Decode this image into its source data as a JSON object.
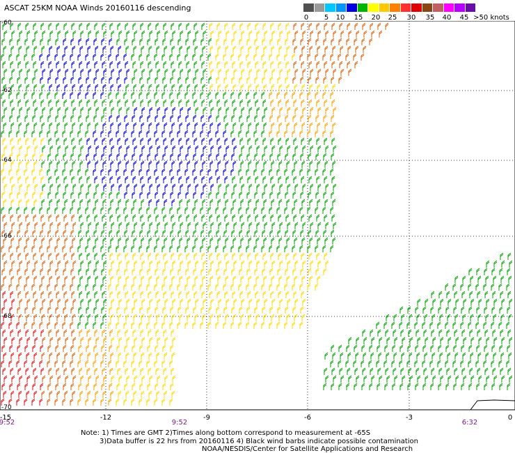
{
  "title": "ASCAT 25KM NOAA Winds 20160116 descending",
  "scale": {
    "colors": [
      "#505050",
      "#9a9a9a",
      "#00c8ff",
      "#0096ff",
      "#0000e0",
      "#00b400",
      "#ffff00",
      "#ffc800",
      "#ff7f00",
      "#ff3030",
      "#e00000",
      "#8b4513",
      "#c06060",
      "#ff00ff",
      "#b400ff",
      "#6a0da8"
    ],
    "ticks": [
      "0",
      "5",
      "10",
      "15",
      "20",
      "25",
      "30",
      "35",
      "40",
      "45",
      ">50 knots"
    ]
  },
  "axes": {
    "lat_labels": [
      "-60",
      "-62",
      "-64",
      "-66",
      "-68",
      "-70"
    ],
    "lon_labels": [
      "-15",
      "-12",
      "-9",
      "-6",
      "-3",
      "0"
    ]
  },
  "time_labels": [
    "9:52",
    "9:52",
    "6:32"
  ],
  "notes": {
    "line1": "Note: 1) Times are GMT 2)Times along bottom correspond to measurement at -65S",
    "line2": "3)Data buffer is 22 hrs from 20160116 4) Black wind barbs indicate possible contamination",
    "line3": "NOAA/NESDIS/Center for Satellite Applications and Research"
  },
  "wind_colors": {
    "blue": "#0000d0",
    "green": "#00a000",
    "yellow": "#ffd800",
    "orange": "#ff9f00",
    "darkorange": "#d8600a",
    "red": "#e01010"
  }
}
